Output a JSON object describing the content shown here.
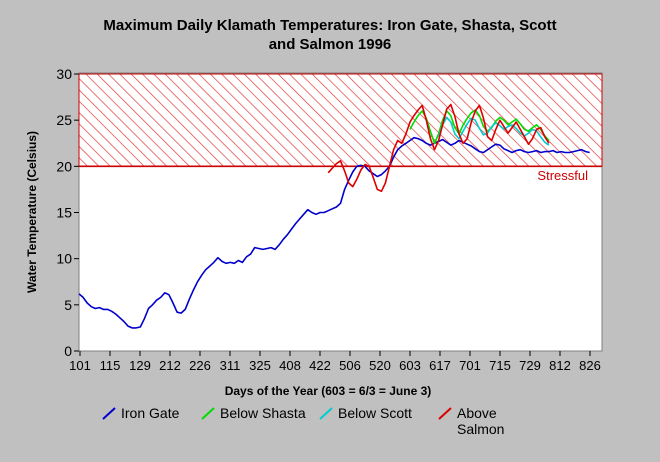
{
  "chart_data": {
    "type": "line",
    "title_line1": "Maximum Daily Klamath Temperatures: Iron Gate, Shasta, Scott",
    "title_line2": "and Salmon 1996",
    "xlabel": "Days of the Year (603 = 6/3 = June 3)",
    "ylabel": "Water Temperature (Celsius)",
    "ylim": [
      0,
      30
    ],
    "y_ticks": [
      "0",
      "5",
      "10",
      "15",
      "20",
      "25",
      "30"
    ],
    "x_tick_labels": [
      "101",
      "115",
      "129",
      "212",
      "226",
      "311",
      "325",
      "408",
      "422",
      "506",
      "520",
      "603",
      "617",
      "701",
      "715",
      "729",
      "812",
      "826"
    ],
    "stress_threshold": 20,
    "stress_label": "Stressful",
    "legend": {
      "placement": "bottom"
    },
    "series": [
      {
        "name": "Iron Gate",
        "color": "#0000cc",
        "x": [
          0,
          2,
          4,
          6,
          8,
          10,
          12,
          14,
          16,
          18,
          20,
          22,
          24,
          26,
          28,
          30,
          32,
          34,
          36,
          38,
          40,
          42,
          44,
          46,
          48,
          50,
          52,
          54,
          56,
          58,
          60,
          62,
          64,
          66,
          68,
          70,
          72,
          74,
          76,
          78,
          80,
          82,
          84,
          86,
          88,
          90,
          92,
          94,
          96,
          98,
          100,
          102,
          104,
          106,
          108,
          110,
          112,
          114,
          116,
          118,
          120,
          122,
          124,
          126,
          128,
          130,
          132,
          134,
          136,
          138,
          140,
          142,
          144,
          146,
          148,
          150,
          152,
          154,
          156,
          158,
          160,
          162,
          164,
          166,
          168,
          170,
          172,
          174,
          176,
          178,
          180,
          182,
          184,
          186,
          188,
          190,
          192,
          194,
          196,
          198,
          200,
          202,
          204,
          206,
          208,
          210,
          212,
          214,
          216,
          218,
          220,
          222,
          224,
          226,
          228,
          230,
          232,
          234,
          236,
          238,
          240,
          242,
          244,
          246,
          248,
          250
        ],
        "y": [
          6.2,
          5.8,
          5.2,
          4.8,
          4.6,
          4.7,
          4.5,
          4.5,
          4.3,
          4.0,
          3.6,
          3.2,
          2.7,
          2.5,
          2.5,
          2.6,
          3.5,
          4.6,
          5.0,
          5.5,
          5.8,
          6.3,
          6.1,
          5.2,
          4.2,
          4.1,
          4.5,
          5.6,
          6.6,
          7.5,
          8.2,
          8.8,
          9.2,
          9.6,
          10.1,
          9.7,
          9.5,
          9.6,
          9.5,
          9.8,
          9.6,
          10.2,
          10.5,
          11.2,
          11.1,
          11.0,
          11.1,
          11.2,
          11.0,
          11.5,
          12.1,
          12.6,
          13.2,
          13.8,
          14.3,
          14.8,
          15.3,
          15.0,
          14.8,
          15.0,
          15.0,
          15.2,
          15.4,
          15.6,
          16.0,
          17.5,
          18.5,
          19.4,
          20.0,
          20.1,
          20.0,
          19.5,
          19.2,
          18.9,
          19.1,
          19.5,
          20.0,
          21.0,
          21.8,
          22.2,
          22.5,
          22.8,
          23.1,
          23.0,
          22.8,
          22.5,
          22.3,
          22.5,
          22.7,
          22.9,
          22.6,
          22.3,
          22.5,
          22.8,
          22.6,
          22.4,
          22.2,
          21.9,
          21.6,
          21.5,
          21.8,
          22.1,
          22.4,
          22.3,
          21.9,
          21.7,
          21.5,
          21.7,
          21.8,
          21.6,
          21.5,
          21.6,
          21.7,
          21.5,
          21.6,
          21.6,
          21.7,
          21.5,
          21.6,
          21.5,
          21.5,
          21.6,
          21.7,
          21.8,
          21.6,
          21.5
        ]
      },
      {
        "name": "Below Shasta",
        "color": "#00dd00",
        "x": [
          162,
          164,
          166,
          168,
          170,
          172,
          174,
          176,
          178,
          180,
          182,
          184,
          186,
          188,
          190,
          192,
          194,
          196,
          198,
          200,
          202,
          204,
          206,
          208,
          210,
          212,
          214,
          216,
          218,
          220,
          222,
          224,
          226,
          228,
          230
        ],
        "y": [
          24.0,
          24.8,
          25.5,
          26.0,
          25.2,
          23.8,
          22.5,
          23.5,
          25.0,
          26.0,
          25.5,
          24.2,
          23.5,
          24.5,
          25.2,
          25.8,
          26.1,
          25.5,
          24.3,
          23.8,
          24.2,
          24.9,
          25.3,
          25.0,
          24.5,
          24.8,
          25.1,
          24.6,
          24.0,
          23.8,
          24.2,
          24.5,
          24.0,
          23.3,
          22.8
        ]
      },
      {
        "name": "Below Scott",
        "color": "#00cccc",
        "x": [
          176,
          178,
          180,
          182,
          184,
          186,
          188,
          190,
          192,
          194,
          196,
          198,
          200,
          202,
          204,
          206,
          208,
          210,
          212,
          214,
          216,
          218,
          220,
          222,
          224,
          226,
          228,
          230
        ],
        "y": [
          23.2,
          24.5,
          25.3,
          24.8,
          23.5,
          23.0,
          23.8,
          24.6,
          25.2,
          25.0,
          24.1,
          23.4,
          23.6,
          24.3,
          24.7,
          24.4,
          24.0,
          24.3,
          24.5,
          24.1,
          23.6,
          23.3,
          23.6,
          24.0,
          23.8,
          23.2,
          22.6,
          22.3
        ]
      },
      {
        "name": "Above\nSalmon",
        "color": "#dd0000",
        "x": [
          122,
          124,
          126,
          128,
          130,
          132,
          134,
          136,
          138,
          140,
          142,
          144,
          146,
          148,
          150,
          152,
          154,
          156,
          158,
          160,
          162,
          164,
          166,
          168,
          170,
          172,
          174,
          176,
          178,
          180,
          182,
          184,
          186,
          188,
          190,
          192,
          194,
          196,
          198,
          200,
          202,
          204,
          206,
          208,
          210,
          212,
          214,
          216,
          218,
          220,
          222,
          224,
          226,
          228,
          230
        ],
        "y": [
          19.3,
          19.8,
          20.3,
          20.6,
          19.5,
          18.2,
          17.8,
          18.6,
          19.6,
          20.2,
          20.0,
          18.8,
          17.5,
          17.3,
          18.2,
          20.0,
          21.8,
          22.8,
          22.5,
          23.5,
          24.8,
          25.5,
          26.1,
          26.6,
          25.0,
          23.0,
          21.8,
          22.8,
          24.5,
          26.2,
          26.7,
          25.4,
          23.5,
          22.5,
          23.0,
          24.8,
          26.0,
          26.6,
          25.2,
          23.2,
          22.8,
          24.0,
          25.0,
          24.3,
          23.6,
          24.2,
          24.8,
          24.0,
          23.2,
          22.4,
          23.0,
          24.0,
          24.2,
          23.2,
          22.5
        ]
      }
    ],
    "x_domain": [
      0,
      256
    ]
  }
}
